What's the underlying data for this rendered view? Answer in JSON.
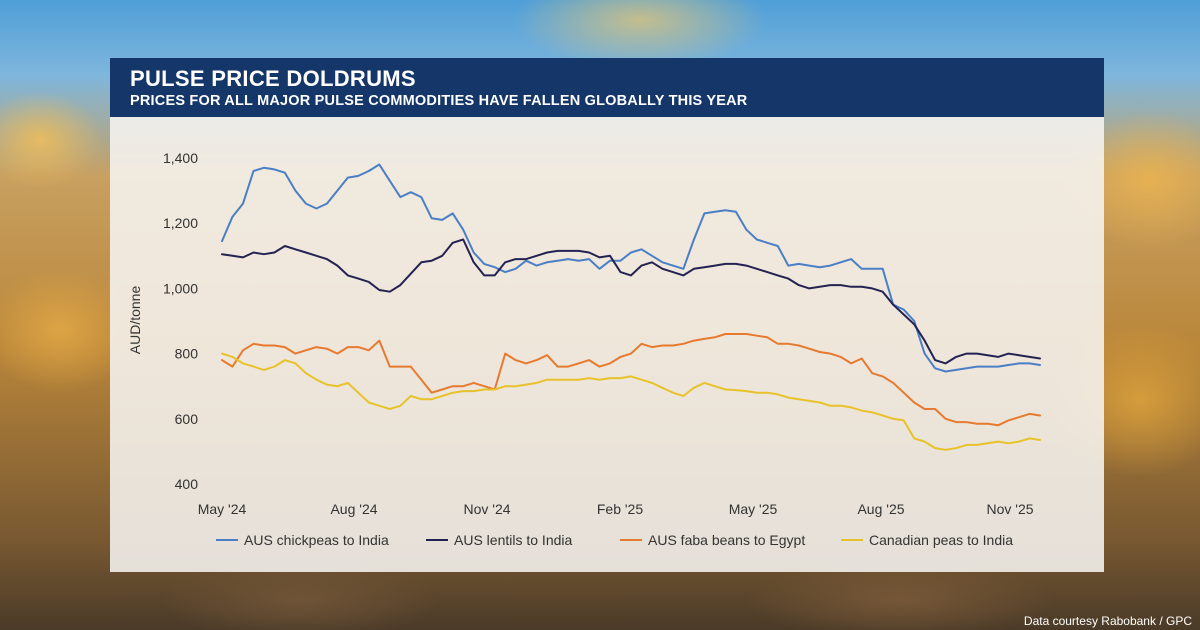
{
  "header": {
    "title": "PULSE PRICE DOLDRUMS",
    "subtitle": "PRICES FOR ALL MAJOR PULSE COMMODITIES HAVE FALLEN GLOBALLY THIS YEAR"
  },
  "credit": "Data courtesy Rabobank / GPC",
  "chart_data": {
    "type": "line",
    "title": "PULSE PRICE DOLDRUMS",
    "subtitle": "PRICES FOR ALL MAJOR PULSE COMMODITIES HAVE FALLEN GLOBALLY THIS YEAR",
    "xlabel": "",
    "ylabel": "AUD/tonne",
    "ylim": [
      400,
      1400
    ],
    "yticks": [
      400,
      600,
      800,
      1000,
      1200,
      1400
    ],
    "ytick_labels": [
      "400",
      "600",
      "800",
      "1,000",
      "1,200",
      "1,400"
    ],
    "xlim": [
      "2024-05",
      "2025-12"
    ],
    "xticks": [
      "May '24",
      "Aug '24",
      "Nov '24",
      "Feb '25",
      "May '25",
      "Aug '25",
      "Nov '25"
    ],
    "grid": false,
    "legend": "bottom",
    "x": [
      "May '24",
      "May '24",
      "Jun '24",
      "Jun '24",
      "Jun '24",
      "Jun '24",
      "Jul '24",
      "Jul '24",
      "Jul '24",
      "Jul '24",
      "Aug '24",
      "Aug '24",
      "Aug '24",
      "Aug '24",
      "Aug '24",
      "Sep '24",
      "Sep '24",
      "Sep '24",
      "Sep '24",
      "Oct '24",
      "Oct '24",
      "Oct '24",
      "Oct '24",
      "Nov '24",
      "Nov '24",
      "Nov '24",
      "Nov '24",
      "Dec '24",
      "Dec '24",
      "Dec '24",
      "Dec '24",
      "Jan '25",
      "Jan '25",
      "Jan '25",
      "Jan '25",
      "Jan '25",
      "Feb '25",
      "Feb '25",
      "Feb '25",
      "Feb '25",
      "Mar '25",
      "Mar '25",
      "Mar '25",
      "Mar '25",
      "Apr '25",
      "Apr '25",
      "Apr '25",
      "Apr '25",
      "May '25",
      "May '25",
      "May '25",
      "May '25",
      "May '25",
      "Jun '25",
      "Jun '25",
      "Jun '25",
      "Jun '25",
      "Jul '25",
      "Jul '25",
      "Jul '25",
      "Jul '25",
      "Aug '25",
      "Aug '25",
      "Aug '25",
      "Aug '25",
      "Sep '25",
      "Sep '25",
      "Sep '25",
      "Sep '25",
      "Oct '25",
      "Oct '25",
      "Oct '25",
      "Oct '25",
      "Nov '25",
      "Nov '25",
      "Nov '25",
      "Nov '25",
      "Dec '25",
      "Dec '25"
    ],
    "series": [
      {
        "name": "AUS chickpeas to India",
        "color": "#4a7fc6",
        "values": [
          1145,
          1220,
          1260,
          1360,
          1370,
          1365,
          1355,
          1300,
          1260,
          1245,
          1260,
          1300,
          1340,
          1345,
          1360,
          1380,
          1330,
          1280,
          1295,
          1280,
          1215,
          1210,
          1230,
          1180,
          1110,
          1075,
          1065,
          1050,
          1060,
          1085,
          1070,
          1080,
          1085,
          1090,
          1085,
          1090,
          1060,
          1085,
          1085,
          1110,
          1120,
          1100,
          1080,
          1070,
          1060,
          1150,
          1230,
          1235,
          1240,
          1235,
          1180,
          1150,
          1140,
          1130,
          1070,
          1075,
          1070,
          1065,
          1070,
          1080,
          1090,
          1060,
          1060,
          1060,
          950,
          935,
          900,
          800,
          755,
          745,
          750,
          755,
          760,
          760,
          760,
          765,
          770,
          770,
          765
        ]
      },
      {
        "name": "AUS lentils to India",
        "color": "#242252",
        "values": [
          1105,
          1100,
          1095,
          1110,
          1105,
          1110,
          1130,
          1120,
          1110,
          1100,
          1090,
          1070,
          1040,
          1030,
          1020,
          995,
          990,
          1010,
          1045,
          1080,
          1085,
          1100,
          1140,
          1150,
          1080,
          1040,
          1040,
          1080,
          1090,
          1090,
          1100,
          1110,
          1115,
          1115,
          1115,
          1110,
          1095,
          1100,
          1050,
          1040,
          1070,
          1080,
          1060,
          1050,
          1040,
          1060,
          1065,
          1070,
          1075,
          1075,
          1070,
          1060,
          1050,
          1040,
          1030,
          1010,
          1000,
          1005,
          1010,
          1010,
          1005,
          1005,
          1000,
          990,
          950,
          920,
          890,
          840,
          780,
          770,
          790,
          800,
          800,
          795,
          790,
          800,
          795,
          790,
          785
        ]
      },
      {
        "name": "AUS faba beans to Egypt",
        "color": "#e67a2e",
        "values": [
          780,
          760,
          810,
          830,
          825,
          825,
          820,
          800,
          810,
          820,
          815,
          800,
          820,
          820,
          810,
          840,
          760,
          760,
          760,
          720,
          680,
          690,
          700,
          700,
          710,
          700,
          690,
          800,
          780,
          770,
          780,
          795,
          760,
          760,
          770,
          780,
          760,
          770,
          790,
          800,
          830,
          820,
          825,
          825,
          830,
          840,
          845,
          850,
          860,
          860,
          860,
          855,
          850,
          830,
          830,
          825,
          815,
          805,
          800,
          790,
          770,
          785,
          740,
          730,
          710,
          680,
          650,
          630,
          630,
          600,
          590,
          590,
          585,
          585,
          580,
          595,
          605,
          615,
          610
        ]
      },
      {
        "name": "Canadian peas to India",
        "color": "#e8c22a",
        "values": [
          800,
          790,
          770,
          760,
          750,
          760,
          780,
          770,
          740,
          720,
          705,
          700,
          710,
          680,
          650,
          640,
          630,
          640,
          670,
          660,
          660,
          670,
          680,
          685,
          685,
          690,
          690,
          700,
          700,
          705,
          710,
          720,
          720,
          720,
          720,
          725,
          720,
          725,
          725,
          730,
          720,
          710,
          695,
          680,
          670,
          695,
          710,
          700,
          690,
          688,
          685,
          680,
          680,
          675,
          665,
          660,
          655,
          650,
          640,
          640,
          635,
          625,
          620,
          610,
          600,
          595,
          540,
          530,
          510,
          505,
          510,
          520,
          520,
          525,
          530,
          525,
          530,
          540,
          535
        ]
      }
    ]
  }
}
